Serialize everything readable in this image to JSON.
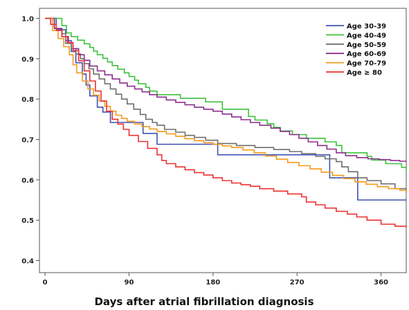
{
  "chart_data": {
    "type": "line",
    "step": true,
    "title": "",
    "xlabel": "Days after atrial fibrillation diagnosis",
    "ylabel": "",
    "xlim": [
      -6,
      387
    ],
    "ylim": [
      0.37,
      1.025
    ],
    "xticks": [
      0,
      90,
      180,
      270,
      360
    ],
    "yticks": [
      0.4,
      0.5,
      0.6,
      0.7,
      0.8,
      0.9,
      1.0
    ],
    "ytick_labels": [
      "0.4",
      "0.5",
      "0.6",
      "0.7",
      "0.8",
      "0.9",
      "1.0"
    ],
    "grid": false,
    "legend_position": "top-right",
    "series": [
      {
        "name": "Age 30-39",
        "color": "#3f51b5",
        "x": [
          0,
          12,
          22,
          28,
          33,
          40,
          44,
          48,
          56,
          62,
          70,
          82,
          95,
          105,
          120,
          140,
          180,
          185,
          215,
          260,
          275,
          300,
          305,
          330,
          335,
          387
        ],
        "y": [
          1.0,
          0.972,
          0.945,
          0.918,
          0.89,
          0.862,
          0.835,
          0.808,
          0.78,
          0.768,
          0.742,
          0.742,
          0.742,
          0.715,
          0.688,
          0.688,
          0.688,
          0.662,
          0.662,
          0.662,
          0.662,
          0.662,
          0.605,
          0.605,
          0.55,
          0.55
        ]
      },
      {
        "name": "Age 40-49",
        "color": "#3cc13c",
        "x": [
          0,
          18,
          23,
          28,
          35,
          42,
          48,
          52,
          56,
          62,
          67,
          72,
          78,
          85,
          90,
          96,
          100,
          108,
          112,
          120,
          145,
          172,
          190,
          218,
          225,
          238,
          245,
          252,
          265,
          280,
          300,
          312,
          318,
          345,
          350,
          365,
          370,
          382,
          387
        ],
        "y": [
          1.0,
          0.982,
          0.964,
          0.955,
          0.946,
          0.937,
          0.928,
          0.919,
          0.91,
          0.901,
          0.892,
          0.883,
          0.874,
          0.865,
          0.856,
          0.847,
          0.838,
          0.829,
          0.82,
          0.811,
          0.802,
          0.793,
          0.775,
          0.757,
          0.748,
          0.739,
          0.73,
          0.721,
          0.712,
          0.703,
          0.694,
          0.685,
          0.667,
          0.658,
          0.649,
          0.64,
          0.64,
          0.631,
          0.622
        ]
      },
      {
        "name": "Age 50-59",
        "color": "#6e6e6e",
        "x": [
          0,
          10,
          18,
          22,
          28,
          33,
          38,
          42,
          47,
          52,
          58,
          64,
          70,
          76,
          82,
          88,
          95,
          102,
          108,
          115,
          120,
          128,
          140,
          150,
          160,
          172,
          185,
          205,
          225,
          245,
          262,
          275,
          290,
          300,
          312,
          318,
          325,
          335,
          345,
          360,
          375,
          387
        ],
        "y": [
          1.0,
          0.975,
          0.962,
          0.938,
          0.925,
          0.912,
          0.9,
          0.888,
          0.875,
          0.862,
          0.85,
          0.838,
          0.825,
          0.812,
          0.8,
          0.788,
          0.775,
          0.762,
          0.75,
          0.742,
          0.735,
          0.725,
          0.718,
          0.71,
          0.705,
          0.698,
          0.69,
          0.685,
          0.68,
          0.675,
          0.67,
          0.665,
          0.658,
          0.652,
          0.645,
          0.632,
          0.62,
          0.605,
          0.598,
          0.59,
          0.578,
          0.57
        ]
      },
      {
        "name": "Age 60-69",
        "color": "#8a2f8c",
        "x": [
          0,
          10,
          18,
          25,
          30,
          36,
          42,
          48,
          56,
          64,
          72,
          80,
          88,
          96,
          104,
          112,
          120,
          130,
          140,
          150,
          160,
          170,
          180,
          190,
          200,
          210,
          220,
          230,
          242,
          252,
          262,
          272,
          282,
          292,
          302,
          312,
          322,
          334,
          346,
          358,
          370,
          380,
          387
        ],
        "y": [
          1.0,
          0.975,
          0.955,
          0.94,
          0.925,
          0.91,
          0.896,
          0.882,
          0.87,
          0.86,
          0.85,
          0.84,
          0.832,
          0.825,
          0.818,
          0.811,
          0.805,
          0.798,
          0.792,
          0.786,
          0.78,
          0.775,
          0.77,
          0.763,
          0.756,
          0.749,
          0.742,
          0.735,
          0.728,
          0.72,
          0.712,
          0.703,
          0.694,
          0.685,
          0.676,
          0.667,
          0.66,
          0.655,
          0.652,
          0.65,
          0.648,
          0.646,
          0.645
        ]
      },
      {
        "name": "Age 70-79",
        "color": "#f39a1b",
        "x": [
          0,
          8,
          14,
          20,
          26,
          30,
          34,
          40,
          46,
          52,
          58,
          64,
          70,
          76,
          82,
          88,
          96,
          104,
          112,
          120,
          130,
          140,
          150,
          160,
          170,
          180,
          190,
          200,
          212,
          224,
          236,
          248,
          260,
          272,
          284,
          296,
          308,
          320,
          332,
          344,
          356,
          368,
          380,
          387
        ],
        "y": [
          1.0,
          0.97,
          0.95,
          0.93,
          0.91,
          0.885,
          0.865,
          0.845,
          0.825,
          0.81,
          0.795,
          0.782,
          0.77,
          0.76,
          0.752,
          0.745,
          0.738,
          0.732,
          0.726,
          0.72,
          0.714,
          0.708,
          0.702,
          0.697,
          0.692,
          0.688,
          0.684,
          0.68,
          0.674,
          0.667,
          0.659,
          0.651,
          0.643,
          0.635,
          0.627,
          0.619,
          0.611,
          0.603,
          0.595,
          0.589,
          0.583,
          0.578,
          0.574,
          0.57
        ]
      },
      {
        "name": "Age ≥ 80",
        "color": "#ee3030",
        "x": [
          0,
          6,
          12,
          18,
          24,
          30,
          36,
          42,
          48,
          54,
          60,
          66,
          72,
          78,
          84,
          90,
          100,
          110,
          120,
          125,
          130,
          140,
          150,
          160,
          170,
          180,
          190,
          200,
          210,
          220,
          230,
          245,
          260,
          275,
          280,
          290,
          300,
          312,
          324,
          334,
          345,
          360,
          375,
          387
        ],
        "y": [
          1.0,
          0.985,
          0.97,
          0.955,
          0.94,
          0.92,
          0.895,
          0.87,
          0.845,
          0.82,
          0.795,
          0.77,
          0.75,
          0.738,
          0.725,
          0.71,
          0.695,
          0.678,
          0.662,
          0.648,
          0.64,
          0.632,
          0.625,
          0.618,
          0.612,
          0.605,
          0.598,
          0.592,
          0.588,
          0.584,
          0.578,
          0.572,
          0.565,
          0.558,
          0.545,
          0.538,
          0.53,
          0.522,
          0.515,
          0.508,
          0.5,
          0.49,
          0.485,
          0.482
        ]
      }
    ]
  }
}
